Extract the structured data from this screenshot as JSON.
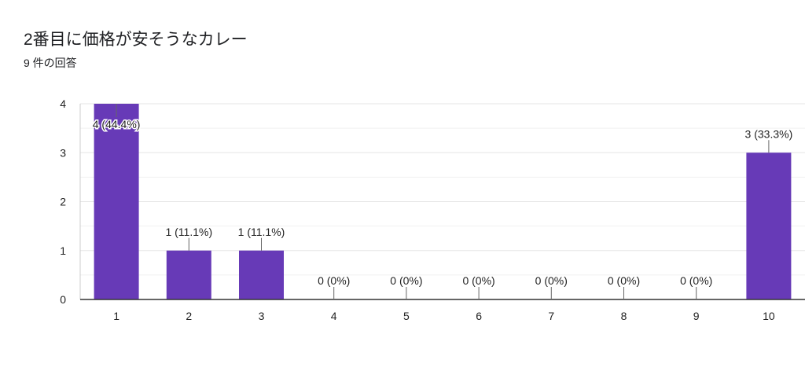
{
  "header": {
    "title": "2番目に価格が安そうなカレー",
    "subtitle": "9 件の回答"
  },
  "colors": {
    "bar": "#673ab7",
    "grid": "#e6e6e6",
    "axis": "#333333",
    "leader": "#666666"
  },
  "chart_data": {
    "type": "bar",
    "categories": [
      "1",
      "2",
      "3",
      "4",
      "5",
      "6",
      "7",
      "8",
      "9",
      "10"
    ],
    "values": [
      4,
      1,
      1,
      0,
      0,
      0,
      0,
      0,
      0,
      3
    ],
    "data_labels": [
      "4 (44.4%)",
      "1 (11.1%)",
      "1 (11.1%)",
      "0 (0%)",
      "0 (0%)",
      "0 (0%)",
      "0 (0%)",
      "0 (0%)",
      "0 (0%)",
      "3 (33.3%)"
    ],
    "y_ticks": [
      "0",
      "1",
      "2",
      "3",
      "4"
    ],
    "ylim": [
      0,
      4
    ],
    "grid": true,
    "title": "",
    "xlabel": "",
    "ylabel": ""
  }
}
